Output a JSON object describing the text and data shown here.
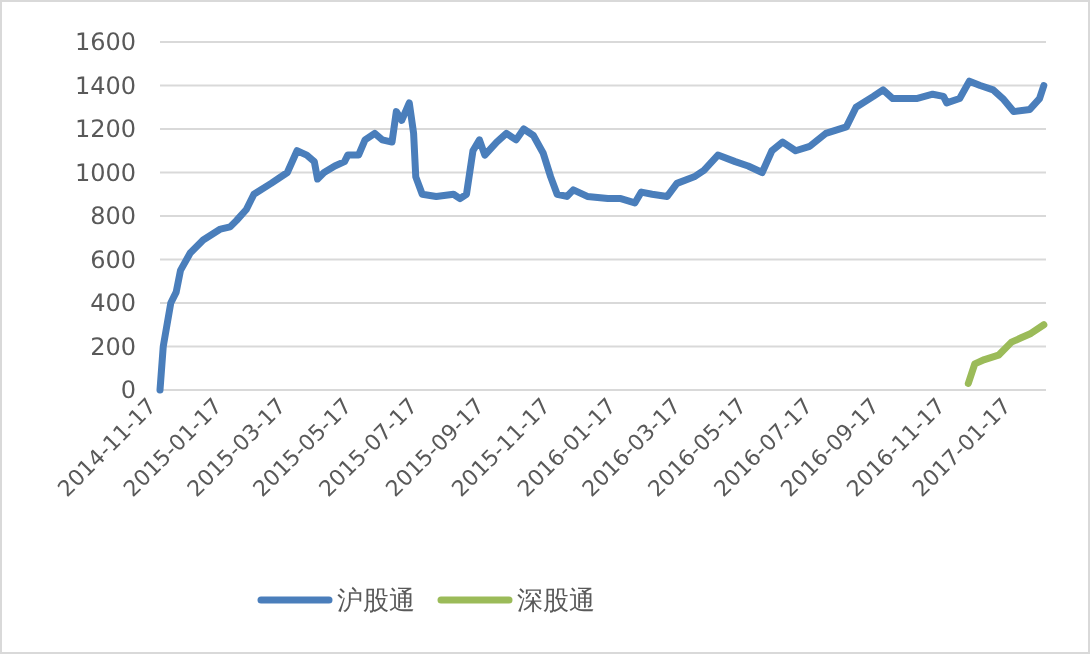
{
  "chart_data": {
    "type": "line",
    "xlim": [
      "2014-11-17",
      "2017-02-15"
    ],
    "ylim": [
      0,
      1600
    ],
    "yticks": [
      0,
      200,
      400,
      600,
      800,
      1000,
      1200,
      1400,
      1600
    ],
    "xticks": [
      "2014-11-17",
      "2015-01-17",
      "2015-03-17",
      "2015-05-17",
      "2015-07-17",
      "2015-09-17",
      "2015-11-17",
      "2016-01-17",
      "2016-03-17",
      "2016-05-17",
      "2016-07-17",
      "2016-09-17",
      "2016-11-17",
      "2017-01-17"
    ],
    "grid": "y",
    "legend": "bottom",
    "marker": "none",
    "line_style": "solid",
    "series": [
      {
        "name": "沪股通",
        "color": "#4a7ebb",
        "x": [
          "2014-11-17",
          "2014-11-20",
          "2014-11-27",
          "2014-12-02",
          "2014-12-06",
          "2014-12-15",
          "2014-12-27",
          "2015-01-12",
          "2015-01-21",
          "2015-01-27",
          "2015-02-05",
          "2015-02-12",
          "2015-02-28",
          "2015-03-15",
          "2015-03-24",
          "2015-04-02",
          "2015-04-09",
          "2015-04-12",
          "2015-04-18",
          "2015-04-28",
          "2015-05-07",
          "2015-05-10",
          "2015-05-20",
          "2015-05-26",
          "2015-06-04",
          "2015-06-11",
          "2015-06-20",
          "2015-06-24",
          "2015-06-29",
          "2015-07-06",
          "2015-07-10",
          "2015-07-12",
          "2015-07-18",
          "2015-07-31",
          "2015-08-16",
          "2015-08-22",
          "2015-08-28",
          "2015-09-03",
          "2015-09-09",
          "2015-09-14",
          "2015-09-25",
          "2015-10-04",
          "2015-10-13",
          "2015-10-20",
          "2015-10-29",
          "2015-11-07",
          "2015-11-14",
          "2015-11-20",
          "2015-11-29",
          "2015-12-05",
          "2015-12-18",
          "2016-01-06",
          "2016-01-18",
          "2016-01-31",
          "2016-02-06",
          "2016-02-16",
          "2016-03-01",
          "2016-03-10",
          "2016-03-26",
          "2016-04-04",
          "2016-04-17",
          "2016-05-03",
          "2016-05-15",
          "2016-05-28",
          "2016-06-06",
          "2016-06-16",
          "2016-06-28",
          "2016-07-11",
          "2016-07-26",
          "2016-08-14",
          "2016-08-23",
          "2016-09-08",
          "2016-09-17",
          "2016-09-26",
          "2016-10-18",
          "2016-11-02",
          "2016-11-12",
          "2016-11-15",
          "2016-11-27",
          "2016-12-06",
          "2016-12-16",
          "2016-12-28",
          "2017-01-06",
          "2017-01-16",
          "2017-01-31",
          "2017-02-09",
          "2017-02-13"
        ],
        "values": [
          0,
          200,
          400,
          450,
          550,
          630,
          690,
          740,
          750,
          780,
          830,
          900,
          950,
          1000,
          1100,
          1080,
          1050,
          970,
          1000,
          1030,
          1050,
          1080,
          1080,
          1150,
          1180,
          1150,
          1140,
          1280,
          1240,
          1320,
          1180,
          980,
          900,
          890,
          900,
          880,
          900,
          1100,
          1150,
          1080,
          1140,
          1180,
          1150,
          1200,
          1170,
          1090,
          980,
          900,
          890,
          920,
          890,
          880,
          880,
          860,
          910,
          900,
          890,
          950,
          980,
          1010,
          1080,
          1050,
          1030,
          1000,
          1100,
          1140,
          1100,
          1120,
          1180,
          1210,
          1300,
          1350,
          1380,
          1340,
          1340,
          1360,
          1350,
          1320,
          1340,
          1420,
          1400,
          1380,
          1340,
          1280,
          1290,
          1340,
          1400
        ]
      },
      {
        "name": "深股通",
        "color": "#9bbb59",
        "x": [
          "2016-12-05",
          "2016-12-11",
          "2016-12-20",
          "2017-01-02",
          "2017-01-14",
          "2017-01-23",
          "2017-02-01",
          "2017-02-13"
        ],
        "values": [
          30,
          120,
          140,
          160,
          220,
          240,
          260,
          300
        ]
      }
    ]
  }
}
